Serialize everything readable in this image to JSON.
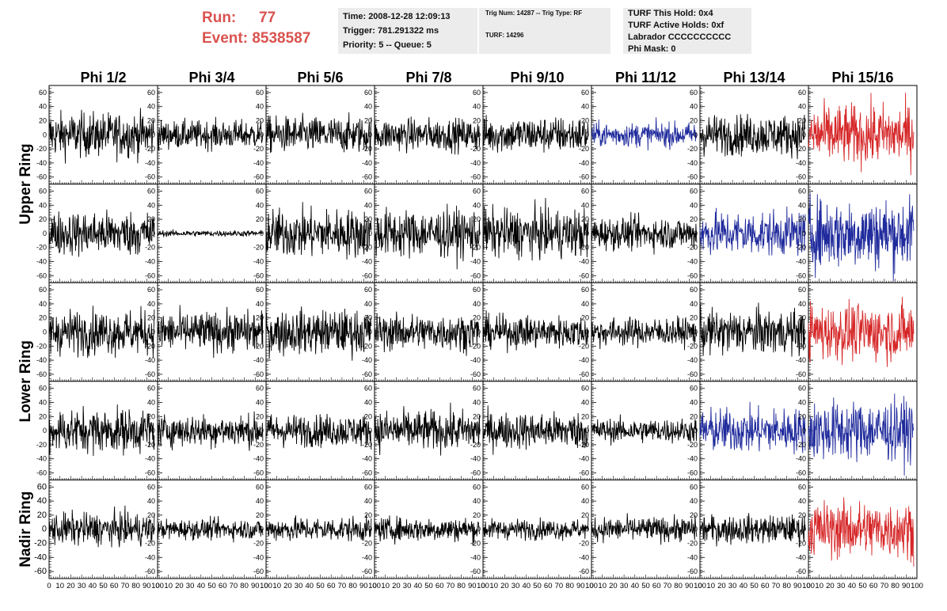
{
  "header": {
    "run_label": "Run:",
    "run_value": "77",
    "event_label": "Event:",
    "event_value": "8538587"
  },
  "time_box": {
    "time": "Time: 2008-12-28 12:09:13",
    "trigger": "Trigger: 781.291322 ms",
    "priority": "Priority: 5 -- Queue: 5"
  },
  "trig_box": {
    "trig": "Trig Num: 14287 -- Trig Type: RF",
    "turf": "TURF: 14296"
  },
  "turf_box": {
    "this_hold": "TURF This Hold: 0x4",
    "active_holds": "TURF Active Holds: 0xf",
    "labrador": "Labrador CCCCCCCCCC",
    "phi_mask": "Phi Mask: 0"
  },
  "chart_data": {
    "type": "line",
    "columns": [
      "Phi 1/2",
      "Phi 3/4",
      "Phi 5/6",
      "Phi 7/8",
      "Phi 9/10",
      "Phi 11/12",
      "Phi 13/14",
      "Phi 15/16"
    ],
    "rows": [
      "Upper Ring",
      "Upper Ring",
      "Lower Ring",
      "Lower Ring",
      "Nadir Ring"
    ],
    "row_labels": [
      "Upper Ring",
      "Lower Ring",
      "Nadir Ring"
    ],
    "xlim": [
      0,
      100
    ],
    "ylim": [
      -70,
      70
    ],
    "x_ticks": [
      0,
      10,
      20,
      30,
      40,
      50,
      60,
      70,
      80,
      90,
      100
    ],
    "x_tick_labels": [
      "0",
      "10",
      "20",
      "30",
      "40",
      "50",
      "60",
      "70",
      "80",
      "90",
      "100"
    ],
    "y_ticks": [
      -60,
      -40,
      -20,
      0,
      20,
      40,
      60
    ],
    "y_tick_labels": [
      "-60",
      "-40",
      "-20",
      "0",
      "20",
      "40",
      "60"
    ],
    "colors": {
      "black": "#000000",
      "blue": "#1f2a9c",
      "red": "#d62728"
    },
    "trace_colors": [
      [
        "black",
        "black",
        "black",
        "black",
        "black",
        "blue",
        "black",
        "red"
      ],
      [
        "black",
        "black",
        "black",
        "black",
        "black",
        "black",
        "blue",
        "blue"
      ],
      [
        "black",
        "black",
        "black",
        "black",
        "black",
        "black",
        "black",
        "red"
      ],
      [
        "black",
        "black",
        "black",
        "black",
        "black",
        "black",
        "blue",
        "blue"
      ],
      [
        "black",
        "black",
        "black",
        "black",
        "black",
        "black",
        "black",
        "red"
      ]
    ],
    "amplitudes": [
      [
        22,
        14,
        18,
        16,
        18,
        12,
        20,
        30
      ],
      [
        22,
        3,
        24,
        24,
        24,
        16,
        22,
        35
      ],
      [
        22,
        20,
        22,
        18,
        16,
        14,
        22,
        28
      ],
      [
        22,
        16,
        16,
        20,
        18,
        12,
        22,
        30
      ],
      [
        16,
        10,
        12,
        12,
        10,
        12,
        14,
        28
      ]
    ],
    "samples_per_trace": 260
  }
}
